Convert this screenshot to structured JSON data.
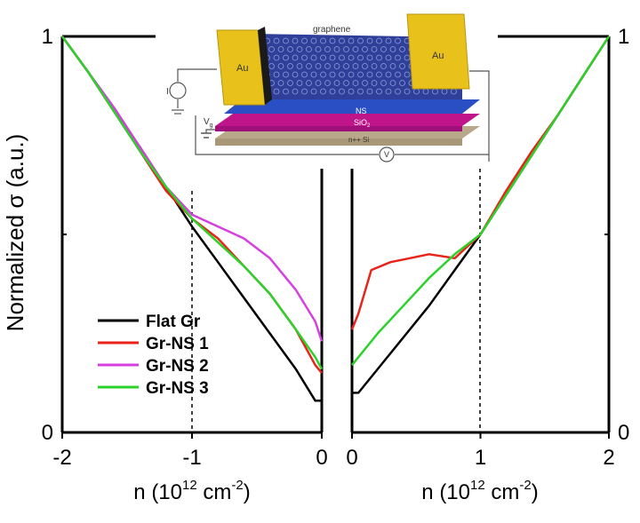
{
  "chart_data": [
    {
      "type": "line",
      "panel": "left",
      "ylabel": "Normalized σ (a.u.)",
      "xlabel_main": "n (10",
      "xlabel_exp": "12",
      "xlabel_unit": " cm",
      "xlabel_unit_exp": "-2",
      "xlabel_close": ")",
      "xlim": [
        -2,
        0
      ],
      "ylim": [
        0,
        1
      ],
      "xticks": [
        "-2",
        "-1",
        "0"
      ],
      "yticks": [
        "0",
        "1"
      ],
      "marker_line_x": -1,
      "series": [
        {
          "name": "Flat Gr",
          "color": "#000000",
          "x": [
            -2.0,
            -1.8,
            -1.6,
            -1.4,
            -1.2,
            -1.0,
            -0.8,
            -0.6,
            -0.4,
            -0.2,
            -0.05,
            0.0
          ],
          "y": [
            1.0,
            0.91,
            0.81,
            0.72,
            0.62,
            0.52,
            0.43,
            0.34,
            0.25,
            0.16,
            0.08,
            0.08
          ]
        },
        {
          "name": "Gr-NS 1",
          "color": "#e8231a",
          "x": [
            -2.0,
            -1.8,
            -1.6,
            -1.4,
            -1.2,
            -1.0,
            -0.8,
            -0.6,
            -0.4,
            -0.2,
            -0.05,
            0.0
          ],
          "y": [
            1.0,
            0.91,
            0.81,
            0.71,
            0.61,
            0.54,
            0.49,
            0.42,
            0.35,
            0.26,
            0.17,
            0.15
          ]
        },
        {
          "name": "Gr-NS 2",
          "color": "#d63fe0",
          "x": [
            -2.0,
            -1.8,
            -1.6,
            -1.4,
            -1.2,
            -1.0,
            -0.8,
            -0.6,
            -0.4,
            -0.2,
            -0.05,
            0.0
          ],
          "y": [
            1.0,
            0.91,
            0.82,
            0.72,
            0.62,
            0.55,
            0.52,
            0.49,
            0.44,
            0.36,
            0.28,
            0.23
          ]
        },
        {
          "name": "Gr-NS 3",
          "color": "#2ad22a",
          "x": [
            -2.0,
            -1.8,
            -1.6,
            -1.4,
            -1.2,
            -1.0,
            -0.8,
            -0.6,
            -0.4,
            -0.2,
            -0.05,
            0.0
          ],
          "y": [
            1.0,
            0.91,
            0.81,
            0.71,
            0.62,
            0.54,
            0.48,
            0.42,
            0.35,
            0.26,
            0.19,
            0.16
          ]
        }
      ]
    },
    {
      "type": "line",
      "panel": "right",
      "xlabel_main": "n (10",
      "xlabel_exp": "12",
      "xlabel_unit": " cm",
      "xlabel_unit_exp": "-2",
      "xlabel_close": ")",
      "xlim": [
        0,
        2
      ],
      "ylim": [
        0,
        1
      ],
      "xticks": [
        "0",
        "1",
        "2"
      ],
      "yticks": [
        "0",
        "1"
      ],
      "marker_line_x": 1,
      "series": [
        {
          "name": "Flat Gr",
          "color": "#000000",
          "x": [
            0.0,
            0.05,
            0.2,
            0.4,
            0.6,
            0.8,
            1.0,
            1.2,
            1.4,
            1.6,
            1.8,
            2.0
          ],
          "y": [
            0.1,
            0.1,
            0.16,
            0.24,
            0.32,
            0.41,
            0.5,
            0.6,
            0.7,
            0.8,
            0.9,
            1.0
          ]
        },
        {
          "name": "Gr-NS 1",
          "color": "#e8231a",
          "x": [
            0.0,
            0.05,
            0.15,
            0.3,
            0.45,
            0.6,
            0.8,
            1.0,
            1.2,
            1.4,
            1.6,
            1.8,
            2.0
          ],
          "y": [
            0.26,
            0.3,
            0.41,
            0.43,
            0.44,
            0.45,
            0.44,
            0.5,
            0.61,
            0.71,
            0.8,
            0.9,
            1.0
          ]
        },
        {
          "name": "Gr-NS 3",
          "color": "#2ad22a",
          "x": [
            0.0,
            0.05,
            0.2,
            0.4,
            0.6,
            0.8,
            1.0,
            1.2,
            1.4,
            1.6,
            1.8,
            2.0
          ],
          "y": [
            0.17,
            0.19,
            0.25,
            0.32,
            0.39,
            0.45,
            0.5,
            0.6,
            0.7,
            0.8,
            0.9,
            1.0
          ]
        }
      ]
    }
  ],
  "legend": {
    "items": [
      {
        "label": "Flat Gr",
        "color": "#000000"
      },
      {
        "label": "Gr-NS 1",
        "color": "#e8231a"
      },
      {
        "label": "Gr-NS 2",
        "color": "#d63fe0"
      },
      {
        "label": "Gr-NS 3",
        "color": "#2ad22a"
      }
    ]
  },
  "inset": {
    "graphene_label": "graphene",
    "electrode_left": "Au",
    "electrode_right": "Au",
    "ns_label": "NS",
    "sio2_label": "SiO",
    "sio2_sub": "2",
    "si_label": "n++ Si",
    "current_label": "I",
    "gate_label": "V",
    "gate_sub": "g",
    "voltmeter_label": "V",
    "colors": {
      "gold": "#e8c21a",
      "sheet": "#2f3f9a",
      "ns": "#2a4fc4",
      "sio2": "#c0158a",
      "si": "#b9a98a"
    }
  }
}
